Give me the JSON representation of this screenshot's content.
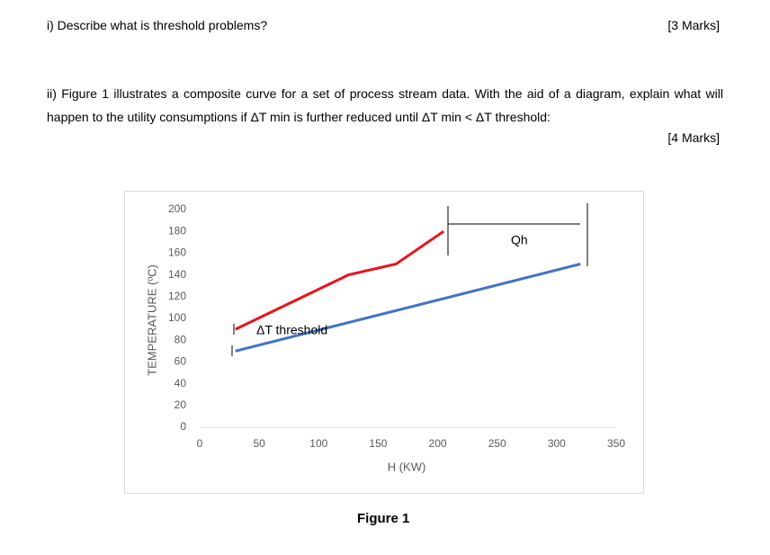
{
  "questions": [
    {
      "text": "i) Describe what is threshold problems?",
      "marks": "[3 Marks]"
    },
    {
      "text": "ii) Figure 1 illustrates a composite curve for a set of process stream data. With the aid of a diagram, explain what will happen to the utility consumptions if ΔT min is further reduced until ΔT min < ΔT threshold:",
      "marks": "[4 Marks]"
    }
  ],
  "chart_data": {
    "type": "line",
    "ylabel": "TEMPERATURE (ºC)",
    "xlabel": "H (KW)",
    "annotations": [
      "ΔT threshold",
      "Qh"
    ],
    "series": [
      {
        "color": "#e8141b",
        "x": [
          30,
          125,
          165,
          205
        ],
        "values": [
          90,
          140,
          150,
          180
        ]
      },
      {
        "color": "#4472c4",
        "x": [
          30,
          320
        ],
        "values": [
          70,
          150
        ]
      }
    ],
    "xlim": [
      0,
      350
    ],
    "xticks": [
      0,
      50,
      100,
      150,
      200,
      250,
      300,
      350
    ],
    "ylim": [
      0,
      200
    ],
    "yticks": [
      0,
      20,
      40,
      60,
      80,
      100,
      120,
      140,
      160,
      180,
      200
    ],
    "grid": false
  },
  "figure_caption": "Figure 1"
}
